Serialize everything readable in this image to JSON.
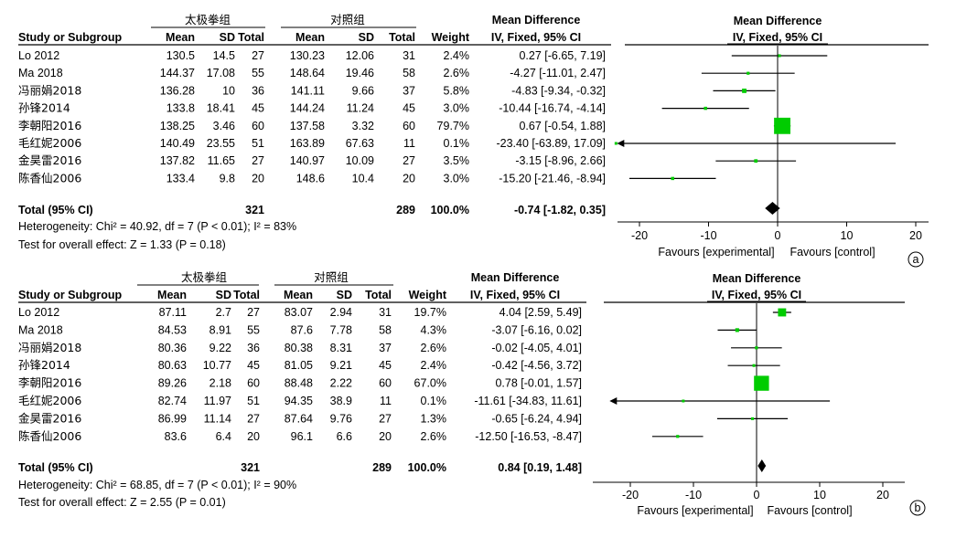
{
  "panels": [
    {
      "id": "a",
      "circle_label": "a",
      "group_exp": "太极拳组",
      "group_ctl": "对照组",
      "md_header": "Mean Difference",
      "ci_header": "IV, Fixed, 95% CI",
      "plot_md_header": "Mean Difference",
      "plot_ci_header": "IV, Fixed, 95% CI",
      "col_headers": [
        "Study or Subgroup",
        "Mean",
        "SD",
        "Total",
        "Mean",
        "SD",
        "Total",
        "Weight"
      ],
      "studies": [
        {
          "name": "Lo 2012",
          "mean_e": "130.5",
          "sd_e": "14.5",
          "n_e": "27",
          "mean_c": "130.23",
          "sd_c": "12.06",
          "n_c": "31",
          "weight": "2.4%",
          "ci": "0.27 [-6.65, 7.19]"
        },
        {
          "name": "Ma 2018",
          "mean_e": "144.37",
          "sd_e": "17.08",
          "n_e": "55",
          "mean_c": "148.64",
          "sd_c": "19.46",
          "n_c": "58",
          "weight": "2.6%",
          "ci": "-4.27 [-11.01, 2.47]"
        },
        {
          "name": "冯丽娟2018",
          "mean_e": "136.28",
          "sd_e": "10",
          "n_e": "36",
          "mean_c": "141.11",
          "sd_c": "9.66",
          "n_c": "37",
          "weight": "5.8%",
          "ci": "-4.83 [-9.34, -0.32]"
        },
        {
          "name": "孙锋2014",
          "mean_e": "133.8",
          "sd_e": "18.41",
          "n_e": "45",
          "mean_c": "144.24",
          "sd_c": "11.24",
          "n_c": "45",
          "weight": "3.0%",
          "ci": "-10.44 [-16.74, -4.14]"
        },
        {
          "name": "李朝阳2016",
          "mean_e": "138.25",
          "sd_e": "3.46",
          "n_e": "60",
          "mean_c": "137.58",
          "sd_c": "3.32",
          "n_c": "60",
          "weight": "79.7%",
          "ci": "0.67 [-0.54, 1.88]"
        },
        {
          "name": "毛红妮2006",
          "mean_e": "140.49",
          "sd_e": "23.55",
          "n_e": "51",
          "mean_c": "163.89",
          "sd_c": "67.63",
          "n_c": "11",
          "weight": "0.1%",
          "ci": "-23.40 [-63.89, 17.09]"
        },
        {
          "name": "金昊雷2016",
          "mean_e": "137.82",
          "sd_e": "11.65",
          "n_e": "27",
          "mean_c": "140.97",
          "sd_c": "10.09",
          "n_c": "27",
          "weight": "3.5%",
          "ci": "-3.15 [-8.96, 2.66]"
        },
        {
          "name": "陈香仙2006",
          "mean_e": "133.4",
          "sd_e": "9.8",
          "n_e": "20",
          "mean_c": "148.6",
          "sd_c": "10.4",
          "n_c": "20",
          "weight": "3.0%",
          "ci": "-15.20 [-21.46, -8.94]"
        }
      ],
      "total": {
        "label": "Total (95% CI)",
        "n_e": "321",
        "n_c": "289",
        "weight": "100.0%",
        "ci": "-0.74 [-1.82, 0.35]"
      },
      "heterogeneity": "Heterogeneity: Chi² = 40.92, df = 7 (P < 0.01); I² = 83%",
      "overall": "Test for overall effect: Z = 1.33 (P = 0.18)",
      "favours_left": "Favours [experimental]",
      "favours_right": "Favours [control]"
    },
    {
      "id": "b",
      "circle_label": "b",
      "group_exp": "太极拳组",
      "group_ctl": "对照组",
      "md_header": "Mean Difference",
      "ci_header": "IV, Fixed, 95% CI",
      "plot_md_header": "Mean Difference",
      "plot_ci_header": "IV, Fixed, 95% CI",
      "col_headers": [
        "Study or Subgroup",
        "Mean",
        "SD",
        "Total",
        "Mean",
        "SD",
        "Total",
        "Weight"
      ],
      "studies": [
        {
          "name": "Lo 2012",
          "mean_e": "87.11",
          "sd_e": "2.7",
          "n_e": "27",
          "mean_c": "83.07",
          "sd_c": "2.94",
          "n_c": "31",
          "weight": "19.7%",
          "ci": "4.04 [2.59, 5.49]"
        },
        {
          "name": "Ma 2018",
          "mean_e": "84.53",
          "sd_e": "8.91",
          "n_e": "55",
          "mean_c": "87.6",
          "sd_c": "7.78",
          "n_c": "58",
          "weight": "4.3%",
          "ci": "-3.07 [-6.16, 0.02]"
        },
        {
          "name": "冯丽娟2018",
          "mean_e": "80.36",
          "sd_e": "9.22",
          "n_e": "36",
          "mean_c": "80.38",
          "sd_c": "8.31",
          "n_c": "37",
          "weight": "2.6%",
          "ci": "-0.02 [-4.05, 4.01]"
        },
        {
          "name": "孙锋2014",
          "mean_e": "80.63",
          "sd_e": "10.77",
          "n_e": "45",
          "mean_c": "81.05",
          "sd_c": "9.21",
          "n_c": "45",
          "weight": "2.4%",
          "ci": "-0.42 [-4.56, 3.72]"
        },
        {
          "name": "李朝阳2016",
          "mean_e": "89.26",
          "sd_e": "2.18",
          "n_e": "60",
          "mean_c": "88.48",
          "sd_c": "2.22",
          "n_c": "60",
          "weight": "67.0%",
          "ci": "0.78 [-0.01, 1.57]"
        },
        {
          "name": "毛红妮2006",
          "mean_e": "82.74",
          "sd_e": "11.97",
          "n_e": "51",
          "mean_c": "94.35",
          "sd_c": "38.9",
          "n_c": "11",
          "weight": "0.1%",
          "ci": "-11.61 [-34.83, 11.61]"
        },
        {
          "name": "金昊雷2016",
          "mean_e": "86.99",
          "sd_e": "11.14",
          "n_e": "27",
          "mean_c": "87.64",
          "sd_c": "9.76",
          "n_c": "27",
          "weight": "1.3%",
          "ci": "-0.65 [-6.24, 4.94]"
        },
        {
          "name": "陈香仙2006",
          "mean_e": "83.6",
          "sd_e": "6.4",
          "n_e": "20",
          "mean_c": "96.1",
          "sd_c": "6.6",
          "n_c": "20",
          "weight": "2.6%",
          "ci": "-12.50 [-16.53, -8.47]"
        }
      ],
      "total": {
        "label": "Total (95% CI)",
        "n_e": "321",
        "n_c": "289",
        "weight": "100.0%",
        "ci": "0.84 [0.19, 1.48]"
      },
      "heterogeneity": "Heterogeneity: Chi² = 68.85, df = 7 (P < 0.01); I² = 90%",
      "overall": "Test for overall effect: Z = 2.55 (P = 0.01)",
      "favours_left": "Favours [experimental]",
      "favours_right": "Favours [control]"
    }
  ],
  "colors": {
    "marker": "#00cc00",
    "text": "#000000",
    "line": "#000000"
  },
  "chart_data": [
    {
      "type": "scatter",
      "subtype": "forest",
      "panel": "a",
      "xlim": [
        -20,
        20
      ],
      "xticks": [
        -20,
        -10,
        0,
        10,
        20
      ],
      "arrow_left": true,
      "points": [
        {
          "study": "Lo 2012",
          "md": 0.27,
          "lo": -6.65,
          "hi": 7.19,
          "weight": 2.4
        },
        {
          "study": "Ma 2018",
          "md": -4.27,
          "lo": -11.01,
          "hi": 2.47,
          "weight": 2.6
        },
        {
          "study": "冯丽娟2018",
          "md": -4.83,
          "lo": -9.34,
          "hi": -0.32,
          "weight": 5.8
        },
        {
          "study": "孙锋2014",
          "md": -10.44,
          "lo": -16.74,
          "hi": -4.14,
          "weight": 3.0
        },
        {
          "study": "李朝阳2016",
          "md": 0.67,
          "lo": -0.54,
          "hi": 1.88,
          "weight": 79.7
        },
        {
          "study": "毛红妮2006",
          "md": -23.4,
          "lo": -63.89,
          "hi": 17.09,
          "weight": 0.1
        },
        {
          "study": "金昊雷2016",
          "md": -3.15,
          "lo": -8.96,
          "hi": 2.66,
          "weight": 3.5
        },
        {
          "study": "陈香仙2006",
          "md": -15.2,
          "lo": -21.46,
          "hi": -8.94,
          "weight": 3.0
        }
      ],
      "total": {
        "md": -0.74,
        "lo": -1.82,
        "hi": 0.35
      }
    },
    {
      "type": "scatter",
      "subtype": "forest",
      "panel": "b",
      "xlim": [
        -20,
        20
      ],
      "xticks": [
        -20,
        -10,
        0,
        10,
        20
      ],
      "arrow_left": true,
      "points": [
        {
          "study": "Lo 2012",
          "md": 4.04,
          "lo": 2.59,
          "hi": 5.49,
          "weight": 19.7
        },
        {
          "study": "Ma 2018",
          "md": -3.07,
          "lo": -6.16,
          "hi": 0.02,
          "weight": 4.3
        },
        {
          "study": "冯丽娟2018",
          "md": -0.02,
          "lo": -4.05,
          "hi": 4.01,
          "weight": 2.6
        },
        {
          "study": "孙锋2014",
          "md": -0.42,
          "lo": -4.56,
          "hi": 3.72,
          "weight": 2.4
        },
        {
          "study": "李朝阳2016",
          "md": 0.78,
          "lo": -0.01,
          "hi": 1.57,
          "weight": 67.0
        },
        {
          "study": "毛红妮2006",
          "md": -11.61,
          "lo": -34.83,
          "hi": 11.61,
          "weight": 0.1
        },
        {
          "study": "金昊雷2016",
          "md": -0.65,
          "lo": -6.24,
          "hi": 4.94,
          "weight": 1.3
        },
        {
          "study": "陈香仙2006",
          "md": -12.5,
          "lo": -16.53,
          "hi": -8.47,
          "weight": 2.6
        }
      ],
      "total": {
        "md": 0.84,
        "lo": 0.19,
        "hi": 1.48
      }
    }
  ]
}
